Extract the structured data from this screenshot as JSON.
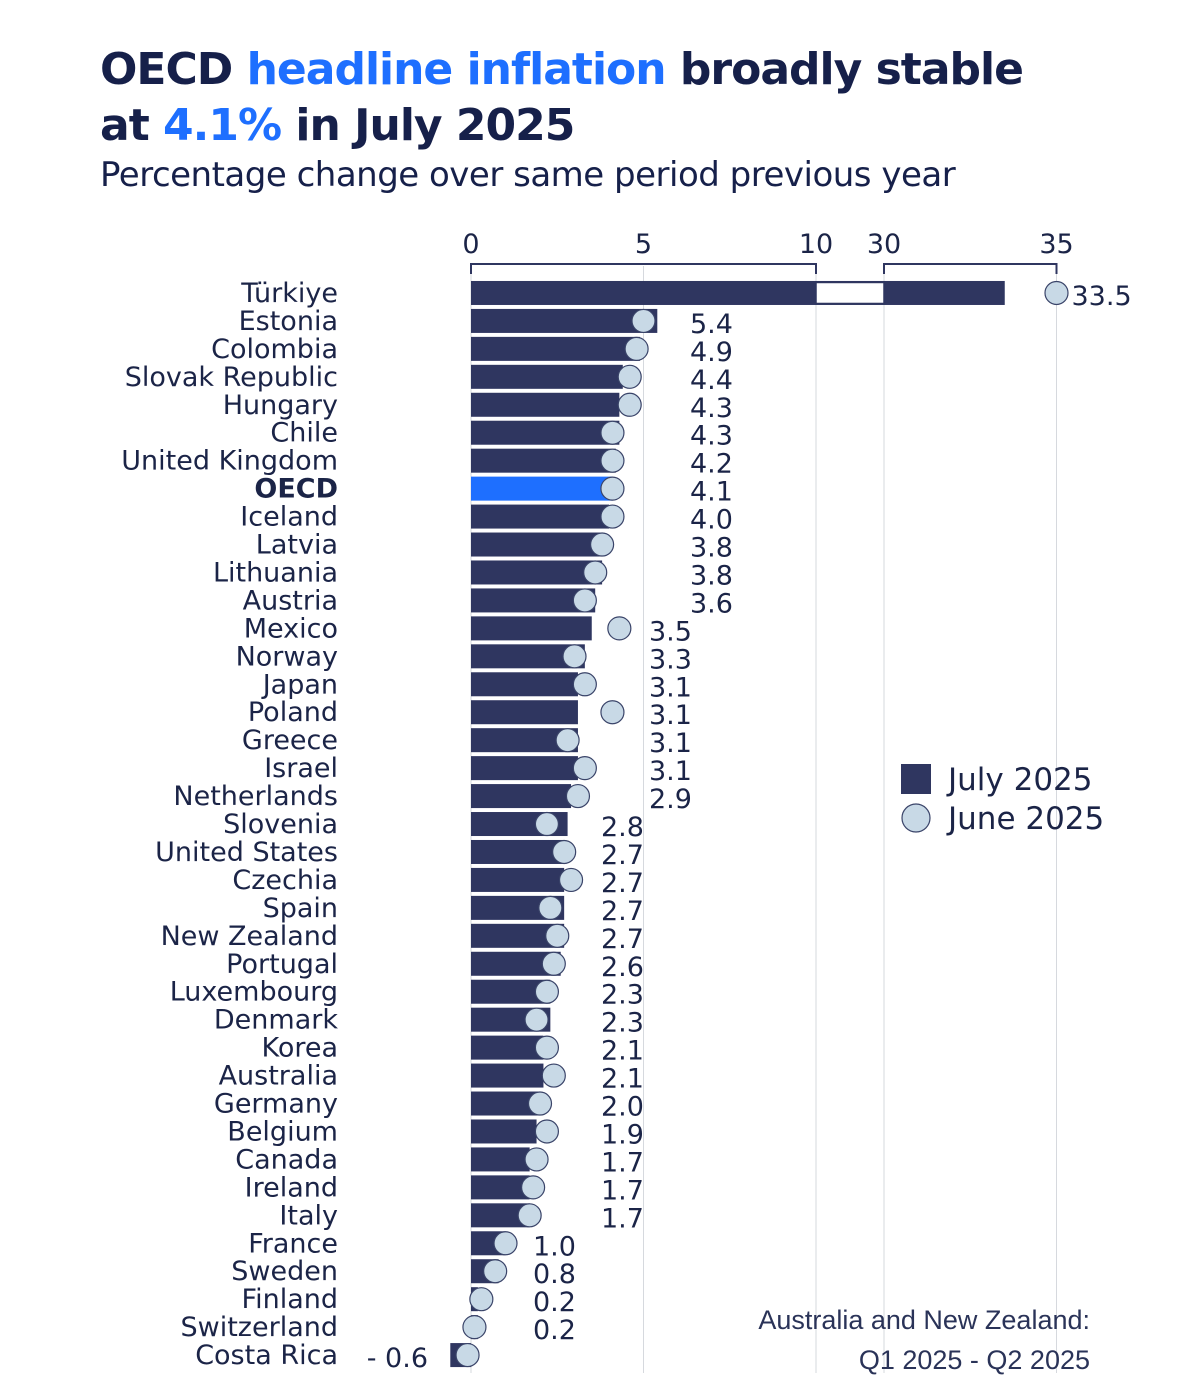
{
  "title": {
    "part1": "OECD ",
    "highlight1": "headline inflation",
    "part2": " broadly stable",
    "part3": "at ",
    "highlight2": "4.1%",
    "part4": " in July 2025"
  },
  "subtitle": "Percentage change over same period previous year",
  "note": {
    "line1": "Australia and New Zealand:",
    "line2": "Q1 2025 - Q2 2025"
  },
  "colors": {
    "july_bar": "#2f3660",
    "oecd_bar": "#1e6fff",
    "june_dot_fill": "#c8d9e6",
    "june_dot_stroke": "#3a4469",
    "text": "#1b2447",
    "grid": "#d6d9de"
  },
  "chart_data": {
    "type": "bar",
    "orientation": "horizontal",
    "title": "OECD headline inflation broadly stable at 4.1% in July 2025",
    "subtitle": "Percentage change over same period previous year",
    "axis": {
      "segments": [
        {
          "range": [
            0,
            10
          ],
          "ticks": [
            0,
            5,
            10
          ]
        },
        {
          "range": [
            30,
            35
          ],
          "ticks": [
            30,
            35
          ]
        }
      ],
      "tick_labels": [
        "0",
        "5",
        "10",
        "30",
        "35"
      ],
      "grid": true,
      "break": [
        10,
        30
      ]
    },
    "legend": {
      "position": "right",
      "entries": [
        {
          "key": "july",
          "label": "July 2025",
          "shape": "square"
        },
        {
          "key": "june",
          "label": "June 2025",
          "shape": "circle"
        }
      ]
    },
    "highlight": "OECD",
    "series": [
      {
        "name": "July 2025",
        "kind": "bar"
      },
      {
        "name": "June 2025",
        "kind": "dot"
      }
    ],
    "rows": [
      {
        "country": "Türkiye",
        "july": 33.5,
        "june": 35.0,
        "label": "33.5"
      },
      {
        "country": "Estonia",
        "july": 5.4,
        "june": 5.0,
        "label": "5.4"
      },
      {
        "country": "Colombia",
        "july": 4.9,
        "june": 4.8,
        "label": "4.9"
      },
      {
        "country": "Slovak Republic",
        "july": 4.4,
        "june": 4.6,
        "label": "4.4"
      },
      {
        "country": "Hungary",
        "july": 4.3,
        "june": 4.6,
        "label": "4.3"
      },
      {
        "country": "Chile",
        "july": 4.3,
        "june": 4.1,
        "label": "4.3"
      },
      {
        "country": "United Kingdom",
        "july": 4.2,
        "june": 4.1,
        "label": "4.2"
      },
      {
        "country": "OECD",
        "july": 4.1,
        "june": 4.1,
        "label": "4.1"
      },
      {
        "country": "Iceland",
        "july": 4.0,
        "june": 4.1,
        "label": "4.0"
      },
      {
        "country": "Latvia",
        "july": 3.8,
        "june": 3.8,
        "label": "3.8"
      },
      {
        "country": "Lithuania",
        "july": 3.8,
        "june": 3.6,
        "label": "3.8"
      },
      {
        "country": "Austria",
        "july": 3.6,
        "june": 3.3,
        "label": "3.6"
      },
      {
        "country": "Mexico",
        "july": 3.5,
        "june": 4.3,
        "label": "3.5"
      },
      {
        "country": "Norway",
        "july": 3.3,
        "june": 3.0,
        "label": "3.3"
      },
      {
        "country": "Japan",
        "july": 3.1,
        "june": 3.3,
        "label": "3.1"
      },
      {
        "country": "Poland",
        "july": 3.1,
        "june": 4.1,
        "label": "3.1"
      },
      {
        "country": "Greece",
        "july": 3.1,
        "june": 2.8,
        "label": "3.1"
      },
      {
        "country": "Israel",
        "july": 3.1,
        "june": 3.3,
        "label": "3.1"
      },
      {
        "country": "Netherlands",
        "july": 2.9,
        "june": 3.1,
        "label": "2.9"
      },
      {
        "country": "Slovenia",
        "july": 2.8,
        "june": 2.2,
        "label": "2.8"
      },
      {
        "country": "United States",
        "july": 2.7,
        "june": 2.7,
        "label": "2.7"
      },
      {
        "country": "Czechia",
        "july": 2.7,
        "june": 2.9,
        "label": "2.7"
      },
      {
        "country": "Spain",
        "july": 2.7,
        "june": 2.3,
        "label": "2.7"
      },
      {
        "country": "New Zealand",
        "july": 2.7,
        "june": 2.5,
        "label": "2.7"
      },
      {
        "country": "Portugal",
        "july": 2.6,
        "june": 2.4,
        "label": "2.6"
      },
      {
        "country": "Luxembourg",
        "july": 2.3,
        "june": 2.2,
        "label": "2.3"
      },
      {
        "country": "Denmark",
        "july": 2.3,
        "june": 1.9,
        "label": "2.3"
      },
      {
        "country": "Korea",
        "july": 2.1,
        "june": 2.2,
        "label": "2.1"
      },
      {
        "country": "Australia",
        "july": 2.1,
        "june": 2.4,
        "label": "2.1"
      },
      {
        "country": "Germany",
        "july": 2.0,
        "june": 2.0,
        "label": "2.0"
      },
      {
        "country": "Belgium",
        "july": 1.9,
        "june": 2.2,
        "label": "1.9"
      },
      {
        "country": "Canada",
        "july": 1.7,
        "june": 1.9,
        "label": "1.7"
      },
      {
        "country": "Ireland",
        "july": 1.7,
        "june": 1.8,
        "label": "1.7"
      },
      {
        "country": "Italy",
        "july": 1.7,
        "june": 1.7,
        "label": "1.7"
      },
      {
        "country": "France",
        "july": 1.0,
        "june": 1.0,
        "label": "1.0"
      },
      {
        "country": "Sweden",
        "july": 0.8,
        "june": 0.7,
        "label": "0.8"
      },
      {
        "country": "Finland",
        "july": 0.2,
        "june": 0.3,
        "label": "0.2"
      },
      {
        "country": "Switzerland",
        "july": 0.2,
        "june": 0.1,
        "label": "0.2"
      },
      {
        "country": "Costa Rica",
        "july": -0.6,
        "june": -0.1,
        "label": "- 0.6"
      }
    ]
  }
}
